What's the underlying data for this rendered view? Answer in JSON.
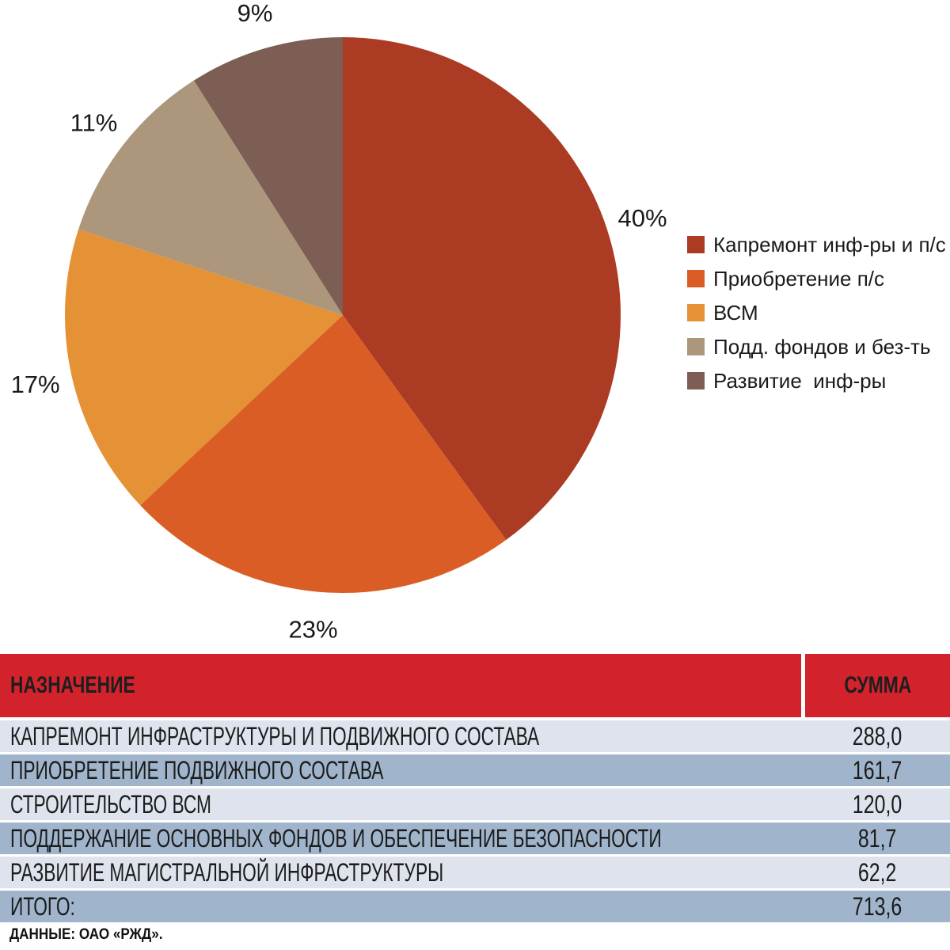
{
  "chart_data": {
    "type": "pie",
    "title": "",
    "labels": [
      "Капремонт инф-ры и п/с",
      "Приобретение п/с",
      "ВСМ",
      "Подд. фондов и без-ть",
      "Развитие  инф-ры"
    ],
    "values": [
      40,
      23,
      17,
      11,
      9
    ],
    "pct_labels": [
      "40%",
      "23%",
      "17%",
      "11%",
      "9%"
    ],
    "amounts": [
      288.0,
      161.7,
      120.0,
      81.7,
      62.2
    ],
    "total": 713.6,
    "colors": [
      "#AC3B23",
      "#DA5D26",
      "#E59135",
      "#AC977D",
      "#7D5E55"
    ],
    "label_color": "#1a1a1a",
    "legend_position": "right",
    "start_angle": "top, clockwise"
  },
  "table": {
    "header": {
      "name": "НАЗНАЧЕНИЕ",
      "value": "СУММА"
    },
    "rows": [
      {
        "name": "КАПРЕМОНТ ИНФРАСТРУКТУРЫ И ПОДВИЖНОГО СОСТАВА",
        "value": "288,0"
      },
      {
        "name": "ПРИОБРЕТЕНИЕ ПОДВИЖНОГО СОСТАВА",
        "value": "161,7"
      },
      {
        "name": "СТРОИТЕЛЬСТВО ВСМ",
        "value": "120,0"
      },
      {
        "name": "ПОДДЕРЖАНИЕ ОСНОВНЫХ ФОНДОВ И ОБЕСПЕЧЕНИЕ БЕЗОПАСНОСТИ",
        "value": "81,7"
      },
      {
        "name": "РАЗВИТИЕ МАГИСТРАЛЬНОЙ ИНФРАСТРУКТУРЫ",
        "value": "62,2"
      },
      {
        "name": "ИТОГО:",
        "value": "713,6"
      }
    ],
    "header_bg": "#D2232D",
    "row_light": "#DEE3ED",
    "row_dark": "#A0B4CB"
  },
  "source_note": "ДАННЫЕ: ОАО «РЖД»."
}
